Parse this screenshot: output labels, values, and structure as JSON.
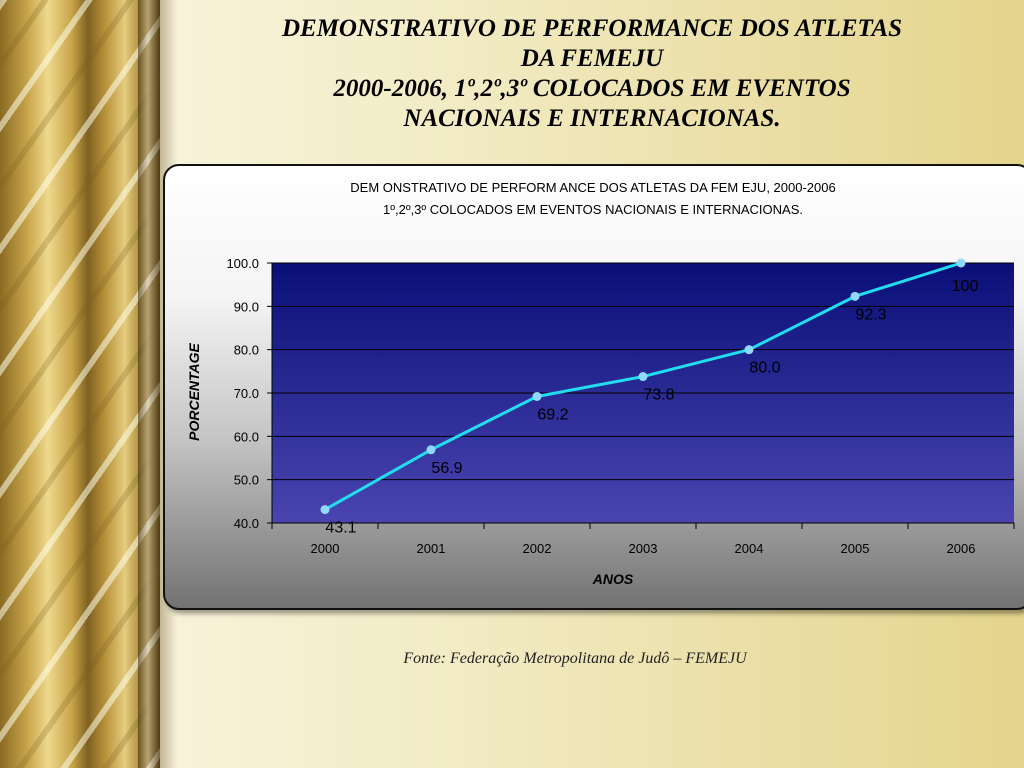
{
  "page": {
    "title_lines": [
      "DEMONSTRATIVO DE PERFORMANCE DOS ATLETAS",
      "DA FEMEJU",
      "2000-2006, 1º,2º,3º COLOCADOS EM EVENTOS",
      "NACIONAIS E INTERNACIONAS."
    ],
    "source": "Fonte: Federação Metropolitana de Judô – FEMEJU"
  },
  "chart_data": {
    "type": "line",
    "title_lines": [
      "DEM ONSTRATIVO DE PERFORM ANCE DOS ATLETAS DA FEM EJU, 2000-2006",
      "1º,2º,3º COLOCADOS EM  EVENTOS NACIONAIS E INTERNACIONAS."
    ],
    "xlabel": "ANOS",
    "ylabel": "PORCENTAGE",
    "categories": [
      "2000",
      "2001",
      "2002",
      "2003",
      "2004",
      "2005",
      "2006"
    ],
    "series": [
      {
        "values": [
          43.1,
          56.9,
          69.2,
          73.8,
          80.0,
          92.3,
          100
        ],
        "labels": [
          "43.1",
          "56.9",
          "69.2",
          "73.8",
          "80.0",
          "92.3",
          "100"
        ],
        "color": "#22ddee",
        "marker_color": "#8fd8ff"
      }
    ],
    "ylim": [
      40,
      100
    ],
    "yticks": [
      40,
      50,
      60,
      70,
      80,
      90,
      100
    ],
    "ytick_labels": [
      "40.0",
      "50.0",
      "60.0",
      "70.0",
      "80.0",
      "90.0",
      "100.0"
    ],
    "grid": true,
    "legend": false,
    "plot_background": [
      "#0a0f78",
      "#4a45b0"
    ]
  }
}
